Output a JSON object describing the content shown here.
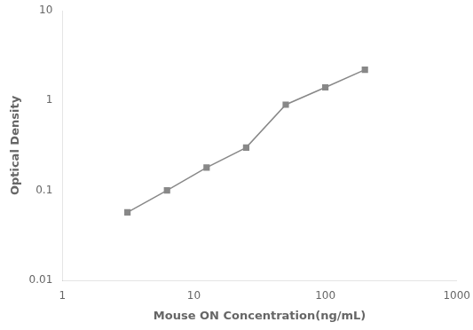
{
  "chart_data": {
    "type": "line",
    "xlabel": "Mouse ON Concentration(ng/mL)",
    "ylabel": "Optical Density",
    "x": [
      3.125,
      6.25,
      12.5,
      25,
      50,
      100,
      200
    ],
    "values": [
      0.057,
      0.1,
      0.18,
      0.3,
      0.9,
      1.4,
      2.2
    ],
    "color": "#888888",
    "marker": "square",
    "line_style": "solid",
    "log": true,
    "xlim": [
      1,
      1000
    ],
    "ylim": [
      0.01,
      10
    ],
    "xticks": [
      1,
      10,
      100,
      1000
    ],
    "yticks": [
      0.01,
      0.1,
      1,
      10
    ],
    "grid": false
  }
}
